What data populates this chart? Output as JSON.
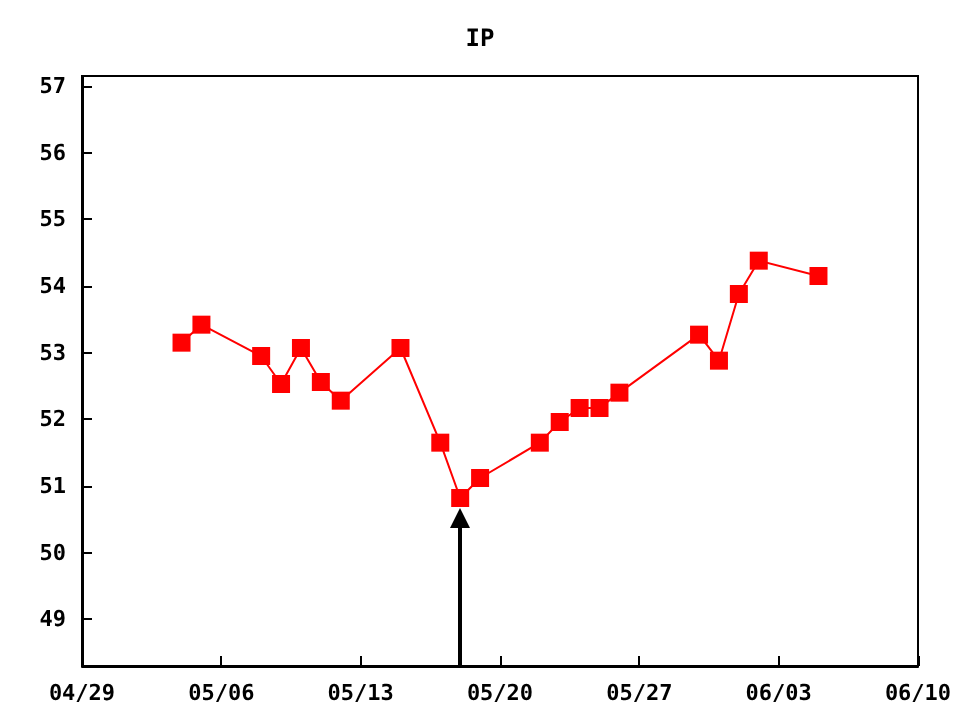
{
  "chart_data": {
    "type": "line",
    "title": "IP",
    "x": [
      "--05-04",
      "--05-05",
      "--05-08",
      "--05-09",
      "--05-10",
      "--05-11",
      "--05-12",
      "--05-15",
      "--05-17",
      "--05-18",
      "--05-19",
      "--05-22",
      "--05-23",
      "--05-24",
      "--05-25",
      "--05-26",
      "--05-30",
      "--05-31",
      "--06-01",
      "--06-02",
      "--06-05"
    ],
    "series": [
      {
        "color": "#ff0000",
        "values": [
          53.15,
          53.42,
          52.95,
          52.53,
          53.07,
          52.56,
          52.28,
          53.07,
          51.65,
          50.82,
          51.12,
          51.65,
          51.96,
          52.17,
          52.17,
          52.4,
          53.27,
          52.88,
          53.88,
          54.38,
          54.15
        ]
      }
    ],
    "xlim": [
      "--04-29",
      "--06-10"
    ],
    "xticks": [
      {
        "value": "--04-29",
        "label": "04/29"
      },
      {
        "value": "--05-06",
        "label": "05/06"
      },
      {
        "value": "--05-13",
        "label": "05/13"
      },
      {
        "value": "--05-20",
        "label": "05/20"
      },
      {
        "value": "--05-27",
        "label": "05/27"
      },
      {
        "value": "--06-03",
        "label": "06/03"
      },
      {
        "value": "--06-10",
        "label": "06/10"
      }
    ],
    "ylim": [
      48.3,
      57.15
    ],
    "yticks": [
      49,
      50,
      51,
      52,
      53,
      54,
      55,
      56,
      57
    ],
    "marker": "square",
    "line_style": "solid",
    "grid": false
  }
}
